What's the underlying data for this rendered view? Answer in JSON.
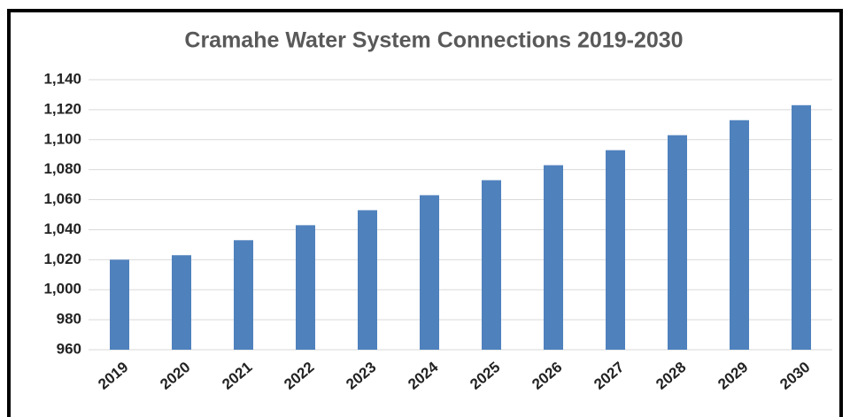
{
  "chart_data": {
    "type": "bar",
    "title": "Cramahe Water System Connections 2019-2030",
    "categories": [
      "2019",
      "2020",
      "2021",
      "2022",
      "2023",
      "2024",
      "2025",
      "2026",
      "2027",
      "2028",
      "2029",
      "2030"
    ],
    "values": [
      1020,
      1023,
      1033,
      1043,
      1053,
      1063,
      1073,
      1083,
      1093,
      1103,
      1113,
      1123
    ],
    "color": "#4f81bd",
    "ylim": [
      960,
      1140
    ],
    "yticks": [
      960,
      980,
      {
        "value": 1000,
        "label": "1,000"
      },
      {
        "value": 1020,
        "label": "1,020"
      },
      {
        "value": 1040,
        "label": "1,040"
      },
      {
        "value": 1060,
        "label": "1,060"
      },
      {
        "value": 1080,
        "label": "1,080"
      },
      {
        "value": 1100,
        "label": "1,100"
      },
      {
        "value": 1120,
        "label": "1,120"
      },
      {
        "value": 1140,
        "label": "1,140"
      }
    ],
    "grid": true
  }
}
